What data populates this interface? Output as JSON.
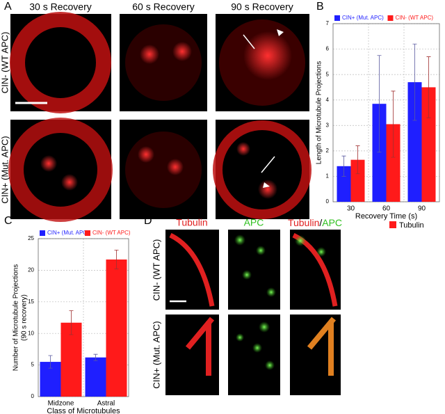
{
  "panel_labels": [
    "A",
    "B",
    "C",
    "D"
  ],
  "panel_a": {
    "columns": [
      "30 s Recovery",
      "60 s Recovery",
      "90 s Recovery"
    ],
    "rows": [
      "CIN- (WT APC)",
      "CIN+ (Mut. APC)"
    ]
  },
  "panel_d": {
    "columns": [
      "Tubulin",
      "APC",
      "Tubulin",
      "/",
      "APC"
    ],
    "rows": [
      "CIN- (WT APC)",
      "CIN+ (Mut. APC)"
    ],
    "legend": "Tubulin"
  },
  "chart_data": [
    {
      "type": "bar",
      "ylabel": "Length of Microtubule Projections",
      "xlabel": "Recovery Time (s)",
      "categories": [
        "30",
        "60",
        "90"
      ],
      "ylim": [
        0,
        7
      ],
      "yticks": [
        0,
        1,
        2,
        3,
        4,
        5,
        6,
        7
      ],
      "grid": true,
      "series": [
        {
          "name": "CIN+ (Mut. APC)",
          "color": "#1f1fff",
          "values": [
            1.4,
            3.85,
            4.7
          ],
          "errors": [
            0.4,
            1.9,
            1.5
          ]
        },
        {
          "name": "CIN- (WT APC)",
          "color": "#ff1a1a",
          "values": [
            1.65,
            3.05,
            4.5
          ],
          "errors": [
            0.55,
            1.3,
            1.2
          ]
        }
      ]
    },
    {
      "type": "bar",
      "ylabel": "Number of Microtubule Projections",
      "ylabel2": "(90 s recovery)",
      "xlabel": "Class of Microtubules",
      "categories": [
        "Midzone",
        "Astral"
      ],
      "ylim": [
        0,
        25
      ],
      "yticks": [
        0,
        5,
        10,
        15,
        20,
        25
      ],
      "grid": true,
      "series": [
        {
          "name": "CIN+ (Mut. APC)",
          "color": "#1f1fff",
          "values": [
            5.5,
            6.2
          ],
          "errors": [
            1.0,
            0.5
          ]
        },
        {
          "name": "CIN- (WT APC)",
          "color": "#ff1a1a",
          "values": [
            11.7,
            21.7
          ],
          "errors": [
            1.9,
            1.5
          ]
        }
      ]
    }
  ]
}
